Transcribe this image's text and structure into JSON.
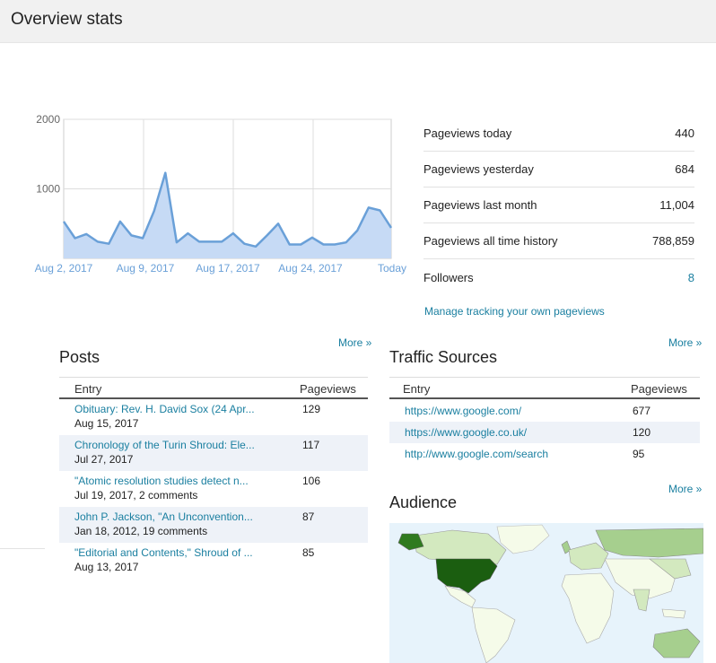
{
  "header": {
    "title": "Overview stats"
  },
  "chart_data": {
    "type": "area",
    "x_labels": [
      "Aug 2, 2017",
      "Aug 9, 2017",
      "Aug 17, 2017",
      "Aug 24, 2017",
      "Today"
    ],
    "y_ticks": [
      2000,
      1000
    ],
    "ylim": [
      0,
      2000
    ],
    "series": [
      {
        "values": [
          530,
          290,
          350,
          240,
          210,
          530,
          330,
          290,
          680,
          1230,
          230,
          360,
          240,
          240,
          240,
          360,
          210,
          170,
          330,
          500,
          200,
          200,
          300,
          200,
          200,
          230,
          400,
          730,
          690,
          440
        ]
      }
    ],
    "colors": {
      "fill": "#c6daf5",
      "line": "#6aa0d8"
    }
  },
  "stats": {
    "rows": [
      {
        "label": "Pageviews today",
        "value": "440"
      },
      {
        "label": "Pageviews yesterday",
        "value": "684"
      },
      {
        "label": "Pageviews last month",
        "value": "11,004"
      },
      {
        "label": "Pageviews all time history",
        "value": "788,859"
      },
      {
        "label": "Followers",
        "value": "8"
      }
    ],
    "manage_link": "Manage tracking your own pageviews"
  },
  "posts": {
    "title": "Posts",
    "more": "More »",
    "col_entry": "Entry",
    "col_pageviews": "Pageviews",
    "rows": [
      {
        "title": "Obituary: Rev. H. David Sox (24 Apr...",
        "sub": "Aug 15, 2017",
        "views": "129"
      },
      {
        "title": "Chronology of the Turin Shroud: Ele...",
        "sub": "Jul 27, 2017",
        "views": "117"
      },
      {
        "title": "\"Atomic resolution studies detect n...",
        "sub": "Jul 19, 2017, 2 comments",
        "views": "106"
      },
      {
        "title": "John P. Jackson, \"An Unconvention...",
        "sub": "Jan 18, 2012, 19 comments",
        "views": "87"
      },
      {
        "title": "\"Editorial and Contents,\" Shroud of ...",
        "sub": "Aug 13, 2017",
        "views": "85"
      }
    ]
  },
  "traffic": {
    "title": "Traffic Sources",
    "more": "More »",
    "col_entry": "Entry",
    "col_pageviews": "Pageviews",
    "rows": [
      {
        "url": "https://www.google.com/",
        "views": "677"
      },
      {
        "url": "https://www.google.co.uk/",
        "views": "120"
      },
      {
        "url": "http://www.google.com/search",
        "views": "95"
      }
    ]
  },
  "audience": {
    "title": "Audience",
    "more": "More »"
  },
  "map_colors": {
    "ocean": "#e7f3fb",
    "land": "#f5fbe9",
    "low": "#d3e9bf",
    "mid": "#a6cf8e",
    "high": "#2f7a1f",
    "top": "#1b5e10"
  }
}
